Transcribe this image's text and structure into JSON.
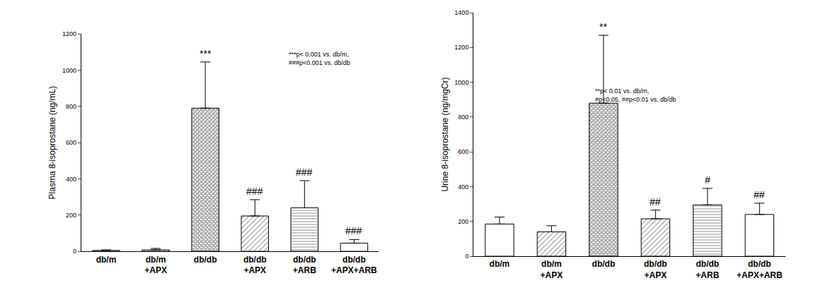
{
  "chart_data": [
    {
      "type": "bar",
      "y_label": "Plasma 8-isoprostane (ng/mL)",
      "categories": [
        "db/m",
        "db/m +APX",
        "db/db",
        "db/db +APX",
        "db/db +ARB",
        "db/db +APX+ARB"
      ],
      "values": [
        5,
        8,
        790,
        195,
        240,
        45
      ],
      "error": [
        3,
        8,
        255,
        90,
        150,
        20
      ],
      "colors": [
        "#ffffff",
        "#ffffff",
        "#ffffff",
        "#ffffff",
        "#ffffff",
        "#ffffff"
      ],
      "ylim": [
        0,
        1200
      ],
      "yticks": [
        0,
        200,
        400,
        600,
        800,
        1000,
        1200
      ],
      "grid": false,
      "annotations": [
        {
          "category": "db/db",
          "text": "***"
        },
        {
          "category": "db/db +APX",
          "text": "###"
        },
        {
          "category": "db/db +ARB",
          "text": "###"
        },
        {
          "category": "db/db +APX+ARB",
          "text": "###"
        }
      ],
      "notes": [
        "***p< 0.001 vs. db/m,",
        "###p<0.001 vs. db/db"
      ]
    },
    {
      "type": "bar",
      "y_label": "Urine 8-isoprostane (ng/mgCr)",
      "categories": [
        "db/m",
        "db/m +APX",
        "db/db",
        "db/db +APX",
        "db/db +ARB",
        "db/db +APX+ARB"
      ],
      "values": [
        185,
        140,
        880,
        215,
        295,
        240
      ],
      "error": [
        40,
        35,
        390,
        50,
        95,
        65
      ],
      "colors": [
        "#ffffff",
        "#ffffff",
        "#ffffff",
        "#ffffff",
        "#ffffff",
        "#ffffff"
      ],
      "ylim": [
        0,
        1400
      ],
      "yticks": [
        0,
        200,
        400,
        600,
        800,
        1000,
        1200,
        1400
      ],
      "grid": false,
      "annotations": [
        {
          "category": "db/db",
          "text": "**"
        },
        {
          "category": "db/db +APX",
          "text": "##"
        },
        {
          "category": "db/db +ARB",
          "text": "#"
        },
        {
          "category": "db/db +APX+ARB",
          "text": "##"
        }
      ],
      "notes": [
        "**p< 0.01 vs. db/m,",
        "#p<0.05, ##p<0.01 vs. db/db"
      ]
    }
  ]
}
